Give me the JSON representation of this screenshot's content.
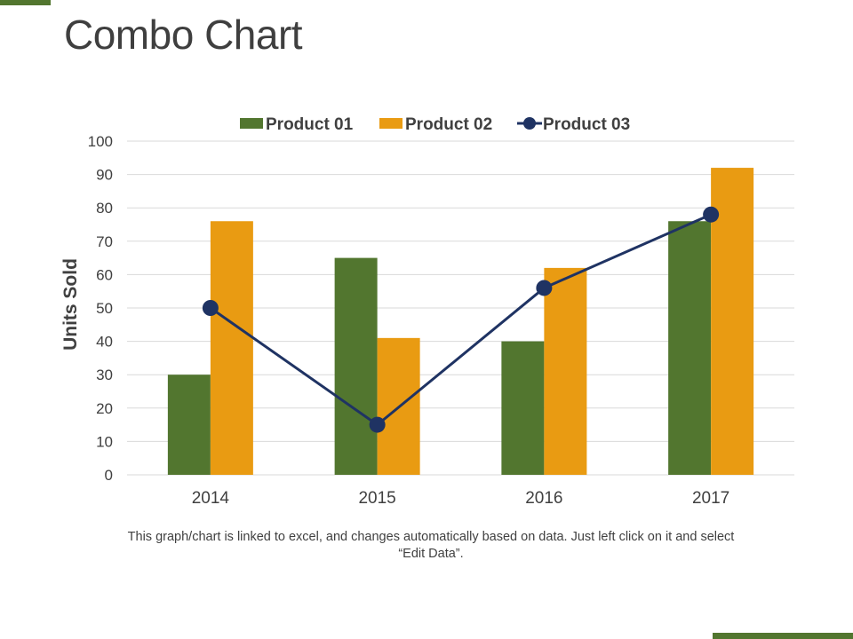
{
  "title": "Combo Chart",
  "caption": "This graph/chart is linked to excel, and changes automatically based on data. Just left click on it and select “Edit Data”.",
  "colors": {
    "accent": "#52762f",
    "product01": "#52762f",
    "product02": "#e99b12",
    "product03": "#1f3363",
    "grid": "#d9d9d9",
    "text": "#404040"
  },
  "chart_data": {
    "type": "bar",
    "combo": true,
    "categories": [
      "2014",
      "2015",
      "2016",
      "2017"
    ],
    "series": [
      {
        "name": "Product 01",
        "type": "bar",
        "values": [
          30,
          65,
          40,
          76
        ]
      },
      {
        "name": "Product 02",
        "type": "bar",
        "values": [
          76,
          41,
          62,
          92
        ]
      },
      {
        "name": "Product 03",
        "type": "line",
        "values": [
          50,
          15,
          56,
          78
        ]
      }
    ],
    "ylabel": "Units Sold",
    "xlabel": "",
    "ylim": [
      0,
      100
    ],
    "yticks": [
      "0",
      "10",
      "20",
      "30",
      "40",
      "50",
      "60",
      "70",
      "80",
      "90",
      "100"
    ],
    "grid": true,
    "legend_position": "top"
  }
}
